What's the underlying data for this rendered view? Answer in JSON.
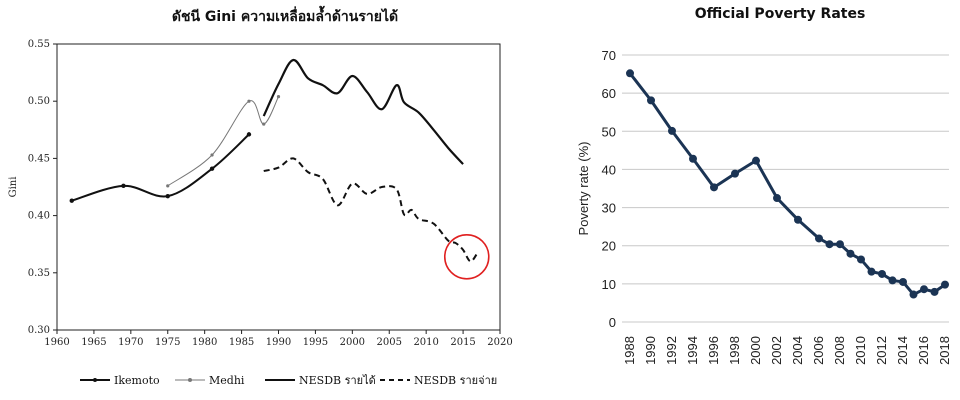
{
  "chart_data": [
    {
      "type": "line",
      "title": "ดัชนี Gini ความเหลื่อมล้ำด้านรายได้",
      "xlabel": "",
      "ylabel": "Gini",
      "xlim": [
        1960,
        2020
      ],
      "ylim": [
        0.3,
        0.55
      ],
      "x_ticks": [
        "1960",
        "1965",
        "1970",
        "1975",
        "1980",
        "1985",
        "1990",
        "1995",
        "2000",
        "2005",
        "2010",
        "2015",
        "2020"
      ],
      "y_ticks": [
        "0.30",
        "0.35",
        "0.40",
        "0.45",
        "0.50",
        "0.55"
      ],
      "grid": false,
      "legend_position": "bottom",
      "annotation": {
        "type": "circle",
        "x": 2015.5,
        "y": 0.364,
        "color": "#e02020"
      },
      "series": [
        {
          "name": "Ikemoto",
          "style": "solid-markers",
          "color": "#111111",
          "points": [
            [
              1962,
              0.413
            ],
            [
              1969,
              0.426
            ],
            [
              1975,
              0.417
            ],
            [
              1981,
              0.441
            ],
            [
              1986,
              0.471
            ]
          ]
        },
        {
          "name": "Medhi",
          "style": "thin-markers",
          "color": "#777777",
          "points": [
            [
              1975,
              0.426
            ],
            [
              1981,
              0.453
            ],
            [
              1986,
              0.5
            ],
            [
              1988,
              0.48
            ],
            [
              1990,
              0.504
            ]
          ]
        },
        {
          "name": "NESDB รายได้",
          "style": "solid",
          "color": "#111111",
          "points": [
            [
              1988,
              0.487
            ],
            [
              1990,
              0.515
            ],
            [
              1992,
              0.536
            ],
            [
              1994,
              0.52
            ],
            [
              1996,
              0.514
            ],
            [
              1998,
              0.507
            ],
            [
              2000,
              0.522
            ],
            [
              2002,
              0.508
            ],
            [
              2004,
              0.493
            ],
            [
              2006,
              0.514
            ],
            [
              2007,
              0.499
            ],
            [
              2009,
              0.49
            ],
            [
              2011,
              0.475
            ],
            [
              2013,
              0.459
            ],
            [
              2015,
              0.445
            ]
          ]
        },
        {
          "name": "NESDB รายจ่าย",
          "style": "dashed",
          "color": "#111111",
          "points": [
            [
              1988,
              0.439
            ],
            [
              1990,
              0.442
            ],
            [
              1992,
              0.45
            ],
            [
              1994,
              0.438
            ],
            [
              1996,
              0.432
            ],
            [
              1998,
              0.409
            ],
            [
              2000,
              0.428
            ],
            [
              2002,
              0.419
            ],
            [
              2004,
              0.425
            ],
            [
              2006,
              0.423
            ],
            [
              2007,
              0.401
            ],
            [
              2008,
              0.405
            ],
            [
              2009,
              0.397
            ],
            [
              2011,
              0.393
            ],
            [
              2013,
              0.378
            ],
            [
              2014,
              0.376
            ],
            [
              2015,
              0.37
            ],
            [
              2016,
              0.36
            ],
            [
              2017,
              0.368
            ]
          ]
        }
      ]
    },
    {
      "type": "line",
      "title": "Official Poverty Rates",
      "xlabel": "",
      "ylabel": "Poverty rate (%)",
      "ylim": [
        0,
        70
      ],
      "y_ticks": [
        "0",
        "10",
        "20",
        "30",
        "40",
        "50",
        "60",
        "70"
      ],
      "grid": true,
      "line_color": "#1b3454",
      "x": [
        1988,
        1990,
        1992,
        1994,
        1996,
        1998,
        2000,
        2002,
        2004,
        2006,
        2007,
        2008,
        2009,
        2010,
        2011,
        2012,
        2013,
        2014,
        2015,
        2016,
        2017,
        2018
      ],
      "x_labels": [
        "1988",
        "1990",
        "1992",
        "1994",
        "1996",
        "1998",
        "2000",
        "2002",
        "2004",
        "2006",
        "2008",
        "2010",
        "2012",
        "2014",
        "2016",
        "2018"
      ],
      "values": [
        65.2,
        58.1,
        50.1,
        42.8,
        35.3,
        38.9,
        42.3,
        32.5,
        26.8,
        21.9,
        20.4,
        20.4,
        17.9,
        16.4,
        13.2,
        12.6,
        10.9,
        10.5,
        7.2,
        8.6,
        7.9,
        9.8
      ]
    }
  ],
  "legend_labels": {
    "ikemoto": "Ikemoto",
    "medhi": "Medhi",
    "nesdb_income": "NESDB รายได้",
    "nesdb_expense": "NESDB รายจ่าย"
  }
}
